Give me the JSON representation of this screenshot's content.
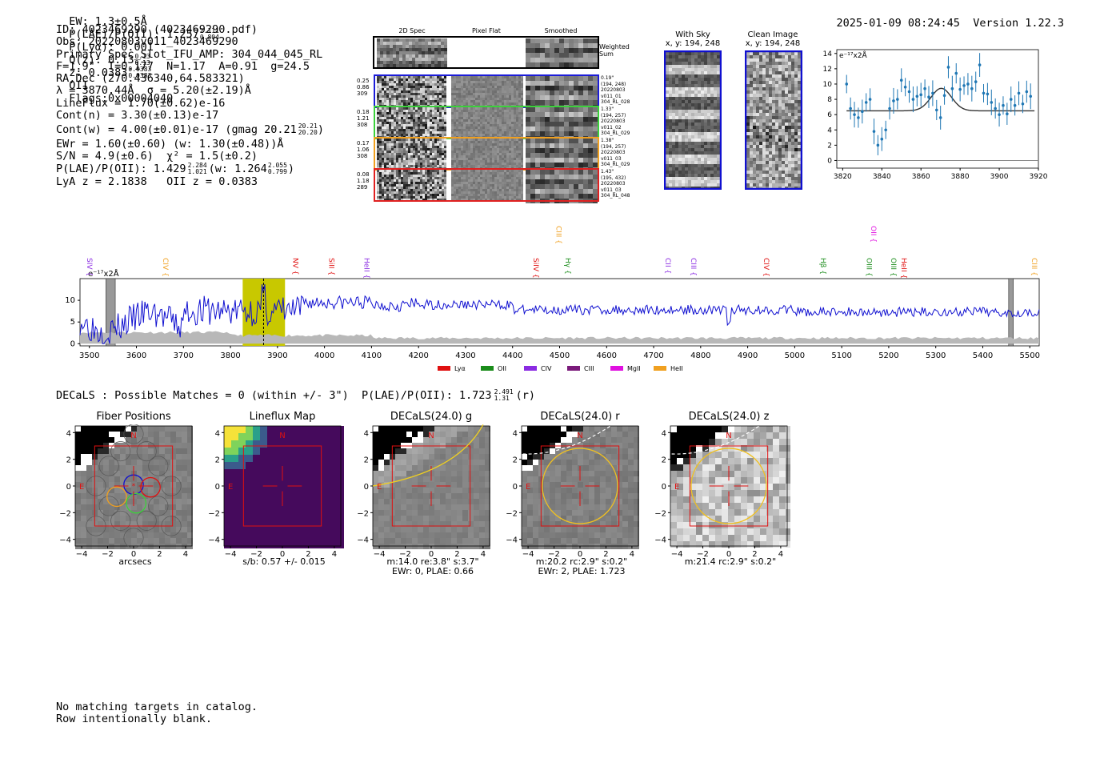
{
  "header": {
    "ew": "EW: 1.3±0.5Å",
    "plae": "P(LAE)/P(OII): 1.257",
    "plae_hi": "2.111",
    "plae_lo": "0.804",
    "plya": "P(Lyα): 0.001",
    "q": "Q(z): 0.13",
    "q_hi": "0.13",
    "q_lo": "0.13",
    "z": "z: 0.0383",
    "z_hi": "0.0383",
    "z_lo": "0.0383",
    "z_line": "OII",
    "flags": "Flags:0x00004040",
    "timestamp": "2025-01-09 08:24:45",
    "version": "Version 1.22.3"
  },
  "info": {
    "id": "ID: 4023469290 (4023469290.pdf)",
    "obs": "Obs: 20220803v011_4023469290",
    "primary": "Primary Spec_Slot_IFU_AMP: 304_044_045_RL",
    "fit": "F=1.9\"  T=0.177  N=1.17  A=0.91  g=24.5",
    "radec": "RA,Dec (270.436340,64.583321)",
    "lambda": "λ = 3870.44Å  σ = 5.20(±2.19)Å",
    "lineflux": "LineFlux = 1.70(±0.62)e-16",
    "contn": "Cont(n) = 3.30(±0.13)e-17",
    "contw": "Cont(w) = 4.00(±0.01)e-17 (gmag 20.21",
    "contw_hi": "20.21",
    "contw_lo": "20.20",
    "ewr": "EWr = 1.60(±0.60) (w: 1.30(±0.48))Å",
    "sn": "S/N = 4.9(±0.6)  χ² = 1.5(±0.2)",
    "plae2": "P(LAE)/P(OII): 1.429",
    "plae2_hi": "2.284",
    "plae2_lo": "1.021",
    "plae2_w": "(w: 1.264",
    "plae2_w_hi": "2.055",
    "plae2_w_lo": "0.799",
    "lya_z": "LyA z = 2.1838   OII z = 0.0383"
  },
  "cutouts": {
    "col_2d": "2D Spec",
    "col_flat": "Pixel Flat",
    "col_smooth": "Smoothed",
    "weighted": "Weighted\nSum",
    "rows": [
      {
        "left": [
          "0.25",
          "0.86",
          "309"
        ],
        "right": [
          "0.19\"",
          "(194, 248)",
          "20220803",
          "v011_01",
          "304_RL_028"
        ],
        "color": "#1c1cd8"
      },
      {
        "left": [
          "0.18",
          "1.21",
          "308"
        ],
        "right": [
          "1.33\"",
          "(194, 257)",
          "20220803",
          "v011_02",
          "304_RL_029"
        ],
        "color": "#3bd13b"
      },
      {
        "left": [
          "0.17",
          "1.06",
          "308"
        ],
        "right": [
          "1.38\"",
          "(194, 257)",
          "20220803",
          "v011_03",
          "304_RL_029"
        ],
        "color": "#f0a020"
      },
      {
        "left": [
          "0.08",
          "1.18",
          "289"
        ],
        "right": [
          "1.43\"",
          "(195, 432)",
          "20220803",
          "v011_03",
          "304_RL_048"
        ],
        "color": "#e02020"
      }
    ],
    "with_sky_title": "With Sky",
    "with_sky_sub": "x, y: 194, 248",
    "clean_title": "Clean Image",
    "clean_sub": "x, y: 194, 248"
  },
  "colors": {
    "blue": "#1010d0",
    "red": "#e01010",
    "green": "#1a8c1a",
    "purple": "#8a2be2",
    "magenta": "#e010e0",
    "orange": "#f0a020",
    "olive": "#c8c800",
    "scatter": "#1f77b4"
  },
  "chart_data": [
    {
      "type": "scatter",
      "title": "zoom spectrum",
      "units_label": "e⁻¹⁷x2Å",
      "x": [
        3822,
        3824,
        3826,
        3828,
        3830,
        3832,
        3834,
        3836,
        3838,
        3840,
        3842,
        3844,
        3846,
        3848,
        3850,
        3852,
        3854,
        3856,
        3858,
        3860,
        3862,
        3864,
        3866,
        3868,
        3870,
        3872,
        3874,
        3876,
        3878,
        3880,
        3882,
        3884,
        3886,
        3888,
        3890,
        3892,
        3894,
        3896,
        3898,
        3900,
        3902,
        3904,
        3906,
        3908,
        3910,
        3912,
        3914,
        3916
      ],
      "y": [
        10,
        6.8,
        6,
        5.6,
        6.4,
        7.6,
        8,
        3.8,
        2,
        2.8,
        4,
        6.8,
        7.8,
        8,
        10.5,
        9.6,
        9,
        8,
        8.4,
        8.6,
        9.4,
        8.3,
        8.8,
        6.6,
        5.6,
        8.5,
        12.2,
        9.4,
        11.4,
        9.3,
        9.8,
        10,
        9.4,
        10.3,
        12.5,
        8.8,
        8.7,
        7.6,
        6.8,
        6,
        7.2,
        6.1,
        8,
        7.2,
        8.8,
        7.4,
        9,
        8.4
      ],
      "fit": {
        "continuum": 6.5,
        "peak": 9.2,
        "center": 3870.4,
        "sigma": 5.2
      },
      "xlim": [
        3817,
        3920
      ],
      "ylim": [
        -1,
        14.5
      ],
      "xticks": [
        3820,
        3840,
        3860,
        3880,
        3900,
        3920
      ],
      "yticks": [
        0,
        2,
        4,
        6,
        8,
        10,
        12,
        14
      ]
    },
    {
      "type": "line",
      "title": "full spectrum",
      "units_label": "e⁻¹⁷x2Å",
      "xlim": [
        3480,
        5520
      ],
      "ylim": [
        -0.5,
        15
      ],
      "xticks": [
        3500,
        3600,
        3700,
        3800,
        3900,
        4000,
        4100,
        4200,
        4300,
        4400,
        4500,
        4600,
        4700,
        4800,
        4900,
        5000,
        5100,
        5200,
        5300,
        5400,
        5500
      ],
      "yticks": [
        0,
        5,
        10
      ],
      "highlight": [
        3826,
        3916
      ],
      "line_marker": 3870.4,
      "masked": [
        [
          3535,
          3555
        ],
        [
          5455,
          5465
        ]
      ],
      "emission_lines": [
        {
          "name": "SIV",
          "x": 3490,
          "color": "#8a2be2",
          "row": 1
        },
        {
          "name": "CIV",
          "x": 3652,
          "color": "#f0a020",
          "row": 1
        },
        {
          "name": "NV",
          "x": 3928,
          "color": "#e01010",
          "row": 1
        },
        {
          "name": "SiII",
          "x": 4005,
          "color": "#e01010",
          "row": 1
        },
        {
          "name": "HeII",
          "x": 4080,
          "color": "#8a2be2",
          "row": 1
        },
        {
          "name": "SiIV",
          "x": 4440,
          "color": "#e01010",
          "row": 1
        },
        {
          "name": "CIII",
          "x": 4488,
          "color": "#f0a020",
          "row": 0
        },
        {
          "name": "Hγ",
          "x": 4508,
          "color": "#1a8c1a",
          "row": 1
        },
        {
          "name": "CII",
          "x": 4720,
          "color": "#8a2be2",
          "row": 1
        },
        {
          "name": "CIII",
          "x": 4775,
          "color": "#8a2be2",
          "row": 1
        },
        {
          "name": "CIV",
          "x": 4930,
          "color": "#e01010",
          "row": 1
        },
        {
          "name": "Hβ",
          "x": 5050,
          "color": "#1a8c1a",
          "row": 1
        },
        {
          "name": "OIII",
          "x": 5148,
          "color": "#1a8c1a",
          "row": 1
        },
        {
          "name": "OII",
          "x": 5158,
          "color": "#e010e0",
          "row": 0
        },
        {
          "name": "OIII",
          "x": 5200,
          "color": "#1a8c1a",
          "row": 1
        },
        {
          "name": "HeII",
          "x": 5222,
          "color": "#e01010",
          "row": 1
        },
        {
          "name": "CIII",
          "x": 5500,
          "color": "#f0a020",
          "row": 1
        }
      ],
      "legend": [
        {
          "name": "Lyα",
          "color": "#e01010"
        },
        {
          "name": "OII",
          "color": "#1a8c1a"
        },
        {
          "name": "CIV",
          "color": "#8a2be2"
        },
        {
          "name": "CIII",
          "color": "#7a1a7a"
        },
        {
          "name": "MgII",
          "color": "#e010e0"
        },
        {
          "name": "HeII",
          "color": "#f0a020"
        }
      ]
    }
  ],
  "decals": {
    "heading": "DECaLS : Possible Matches = 0 (within +/- 3\")  P(LAE)/P(OII): 1.723",
    "heading_hi": "2.491",
    "heading_lo": "1.31",
    "heading_tail": "(r)",
    "ticks": [
      "−4",
      "−2",
      "0",
      "2",
      "4"
    ],
    "yticks": [
      "4",
      "2",
      "0",
      "−2",
      "−4"
    ],
    "panels": [
      {
        "title": "Fiber Positions",
        "caption": [
          "arcsecs"
        ],
        "kind": "fiber"
      },
      {
        "title": "Lineflux Map",
        "caption": [
          "s/b: 0.57 +/- 0.015"
        ],
        "kind": "flux"
      },
      {
        "title": "DECaLS(24.0) g",
        "caption": [
          "m:14.0  re:3.8\"  s:3.7\"",
          "EWr: 0, PLAE: 0.66"
        ],
        "kind": "g"
      },
      {
        "title": "DECaLS(24.0) r",
        "caption": [
          "m:20.2 rc:2.9\"  s:0.2\"",
          "EWr: 2, PLAE: 1.723"
        ],
        "kind": "r"
      },
      {
        "title": "DECaLS(24.0) z",
        "caption": [
          "m:21.4 rc:2.9\"  s:0.2\""
        ],
        "kind": "z"
      }
    ],
    "n_label": "N",
    "e_label": "E"
  },
  "footer": {
    "line1": "No matching targets in catalog.",
    "line2": "Row intentionally blank."
  }
}
